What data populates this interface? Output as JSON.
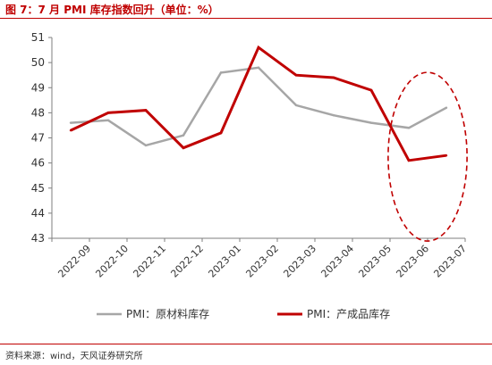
{
  "header": {
    "title": "图 7：7 月 PMI 库存指数回升（单位：%）"
  },
  "footer": {
    "source": "资料来源：wind，天风证券研究所"
  },
  "chart_data": {
    "type": "line",
    "title": "图 7：7 月 PMI 库存指数回升（单位：%）",
    "xlabel": "",
    "ylabel": "",
    "categories": [
      "2022-09",
      "2022-10",
      "2022-11",
      "2022-12",
      "2023-01",
      "2023-02",
      "2023-03",
      "2023-04",
      "2023-05",
      "2023-06",
      "2023-07"
    ],
    "yticks": [
      43,
      44,
      45,
      46,
      47,
      48,
      49,
      50,
      51
    ],
    "ylim": [
      43,
      51
    ],
    "grid": false,
    "legend": "bottom",
    "series": [
      {
        "name": "PMI：原材料库存",
        "color": "#a6a6a6",
        "values": [
          47.6,
          47.7,
          46.7,
          47.1,
          49.6,
          49.8,
          48.3,
          47.9,
          47.6,
          47.4,
          48.2
        ]
      },
      {
        "name": "PMI：产成品库存",
        "color": "#c00000",
        "values": [
          47.3,
          48.0,
          48.1,
          46.6,
          47.2,
          50.6,
          49.5,
          49.4,
          48.9,
          46.1,
          46.3
        ]
      }
    ],
    "annotation": {
      "shape": "dashed-ellipse",
      "color": "#c00000",
      "covers": [
        "2023-06",
        "2023-07"
      ]
    }
  }
}
